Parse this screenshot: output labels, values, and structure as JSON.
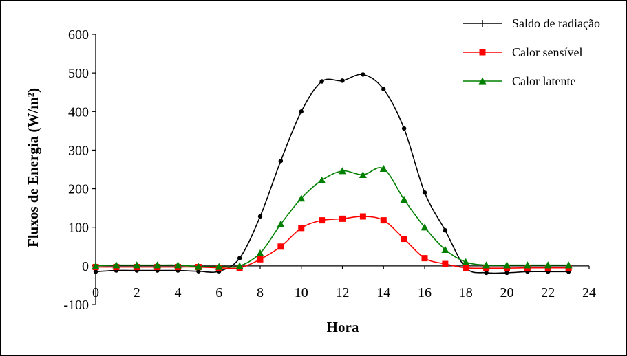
{
  "chart_data": {
    "type": "line",
    "title": "",
    "xlabel": "Hora",
    "ylabel": "Fluxos de Energia (W/m²)",
    "xlim": [
      0,
      24
    ],
    "ylim": [
      -100,
      600
    ],
    "x_ticks": [
      "0",
      "2",
      "4",
      "6",
      "8",
      "10",
      "12",
      "14",
      "16",
      "18",
      "20",
      "22",
      "24"
    ],
    "y_ticks": [
      "600",
      "500",
      "400",
      "300",
      "200",
      "100",
      "0",
      "-100"
    ],
    "grid": false,
    "legend_position": "top-right",
    "x": [
      0,
      1,
      2,
      3,
      4,
      5,
      6,
      7,
      8,
      9,
      10,
      11,
      12,
      13,
      14,
      15,
      16,
      17,
      18,
      19,
      20,
      21,
      22,
      23
    ],
    "series": [
      {
        "name": "Saldo de radiação",
        "color": "#000000",
        "marker": "circle",
        "values": [
          -15,
          -12,
          -12,
          -12,
          -12,
          -14,
          -14,
          20,
          128,
          272,
          400,
          478,
          480,
          496,
          458,
          356,
          190,
          92,
          -5,
          -18,
          -18,
          -15,
          -15,
          -15
        ]
      },
      {
        "name": "Calor sensível",
        "color": "#ff0000",
        "marker": "square",
        "values": [
          -3,
          -3,
          -3,
          -3,
          -3,
          -3,
          -5,
          -5,
          17,
          50,
          98,
          118,
          122,
          128,
          118,
          70,
          20,
          5,
          -5,
          -6,
          -6,
          -5,
          -5,
          -5
        ]
      },
      {
        "name": "Calor latente",
        "color": "#008000",
        "marker": "triangle",
        "values": [
          0,
          2,
          2,
          2,
          2,
          -2,
          -2,
          0,
          33,
          108,
          175,
          222,
          246,
          236,
          252,
          172,
          100,
          42,
          10,
          2,
          2,
          2,
          2,
          2
        ]
      }
    ]
  }
}
